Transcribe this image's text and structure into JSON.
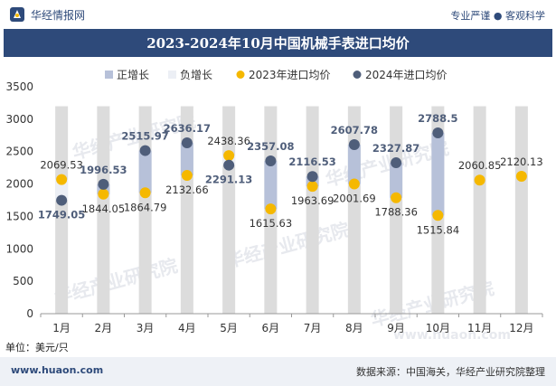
{
  "brand": {
    "name": "华经情报网",
    "tagline": "专业严谨 ● 客观科学"
  },
  "title": "2023-2024年10月中国机械手表进口均价",
  "unit_label": "单位：美元/只",
  "footer": {
    "url": "www.huaon.com",
    "source": "数据来源：中国海关，华经产业研究院整理"
  },
  "watermark": {
    "text": "华经产业研究院",
    "url": "www.huaon.com"
  },
  "colors": {
    "header_bg": "#2e4a7a",
    "bar_up": "#b7c1d9",
    "bar_down": "#eceff5",
    "bar_column": "#dcdcdc",
    "dot_2023": "#f5b800",
    "dot_2024": "#4f5e7a",
    "footer_bg": "#eef1f6"
  },
  "chart_data": {
    "type": "floating-bar-with-scatter",
    "categories": [
      "1月",
      "2月",
      "3月",
      "4月",
      "5月",
      "6月",
      "7月",
      "8月",
      "9月",
      "10月",
      "11月",
      "12月"
    ],
    "series": [
      {
        "name": "2023年进口均价",
        "values": [
          2069.53,
          1844.05,
          1864.79,
          2132.66,
          2438.36,
          1615.63,
          1963.69,
          2001.69,
          1788.36,
          1515.84,
          2060.85,
          2120.13
        ]
      },
      {
        "name": "2024年进口均价",
        "values": [
          1749.05,
          1996.53,
          2515.97,
          2636.17,
          2291.13,
          2357.08,
          2116.53,
          2607.78,
          2327.87,
          2788.5,
          null,
          null
        ]
      }
    ],
    "legend": [
      "正增长",
      "负增长",
      "2023年进口均价",
      "2024年进口均价"
    ],
    "legend_position": "top",
    "ylim": [
      0,
      3500
    ],
    "yticks": [
      0,
      500,
      1000,
      1500,
      2000,
      2500,
      3000,
      3500
    ],
    "grid": false
  }
}
